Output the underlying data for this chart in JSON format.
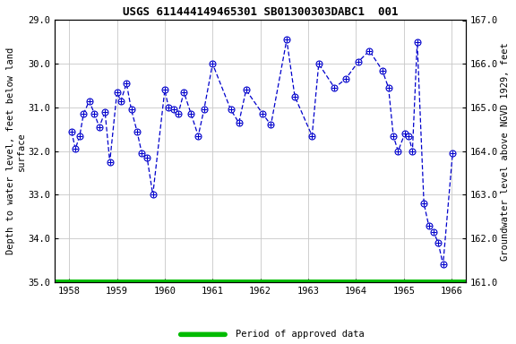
{
  "title": "USGS 611444149465301 SB01300303DABC1  001",
  "ylabel_left": "Depth to water level, feet below land\nsurface",
  "ylabel_right": "Groundwater level above NGVD 1929, feet",
  "xlim": [
    1957.7,
    1966.3
  ],
  "ylim_left": [
    35.0,
    29.0
  ],
  "ylim_right": [
    161.0,
    167.0
  ],
  "yticks_left": [
    29.0,
    30.0,
    31.0,
    32.0,
    33.0,
    34.0,
    35.0
  ],
  "yticks_right": [
    161.0,
    162.0,
    163.0,
    164.0,
    165.0,
    166.0,
    167.0
  ],
  "xticks": [
    1958,
    1959,
    1960,
    1961,
    1962,
    1963,
    1964,
    1965,
    1966
  ],
  "line_color": "#0000cc",
  "marker_facecolor": "#ffffff",
  "marker_edgecolor": "#0000cc",
  "background_color": "#ffffff",
  "grid_color": "#c8c8c8",
  "period_color": "#00bb00",
  "legend_label": "Period of approved data",
  "data_x": [
    1958.05,
    1958.13,
    1958.22,
    1958.3,
    1958.42,
    1958.53,
    1958.63,
    1958.75,
    1958.85,
    1959.0,
    1959.08,
    1959.2,
    1959.3,
    1959.42,
    1959.52,
    1959.63,
    1959.75,
    1960.0,
    1960.08,
    1960.18,
    1960.28,
    1960.4,
    1960.55,
    1960.7,
    1960.82,
    1961.0,
    1961.38,
    1961.55,
    1961.7,
    1962.05,
    1962.22,
    1962.55,
    1962.72,
    1963.08,
    1963.22,
    1963.55,
    1963.78,
    1964.05,
    1964.28,
    1964.55,
    1964.68,
    1964.78,
    1964.88,
    1965.02,
    1965.1,
    1965.18,
    1965.28,
    1965.42,
    1965.52,
    1965.62,
    1965.72,
    1965.82,
    1966.02
  ],
  "data_y": [
    31.55,
    31.95,
    31.65,
    31.15,
    30.85,
    31.15,
    31.45,
    31.1,
    32.25,
    30.65,
    30.85,
    30.45,
    31.05,
    31.55,
    32.05,
    32.15,
    33.0,
    30.6,
    31.0,
    31.05,
    31.15,
    30.65,
    31.15,
    31.65,
    31.05,
    30.0,
    31.05,
    31.35,
    30.6,
    31.15,
    31.4,
    29.45,
    30.75,
    31.65,
    30.0,
    30.55,
    30.35,
    29.95,
    29.7,
    30.15,
    30.55,
    31.65,
    32.0,
    31.6,
    31.65,
    32.0,
    29.5,
    33.2,
    33.7,
    33.85,
    34.1,
    34.6,
    32.05
  ]
}
